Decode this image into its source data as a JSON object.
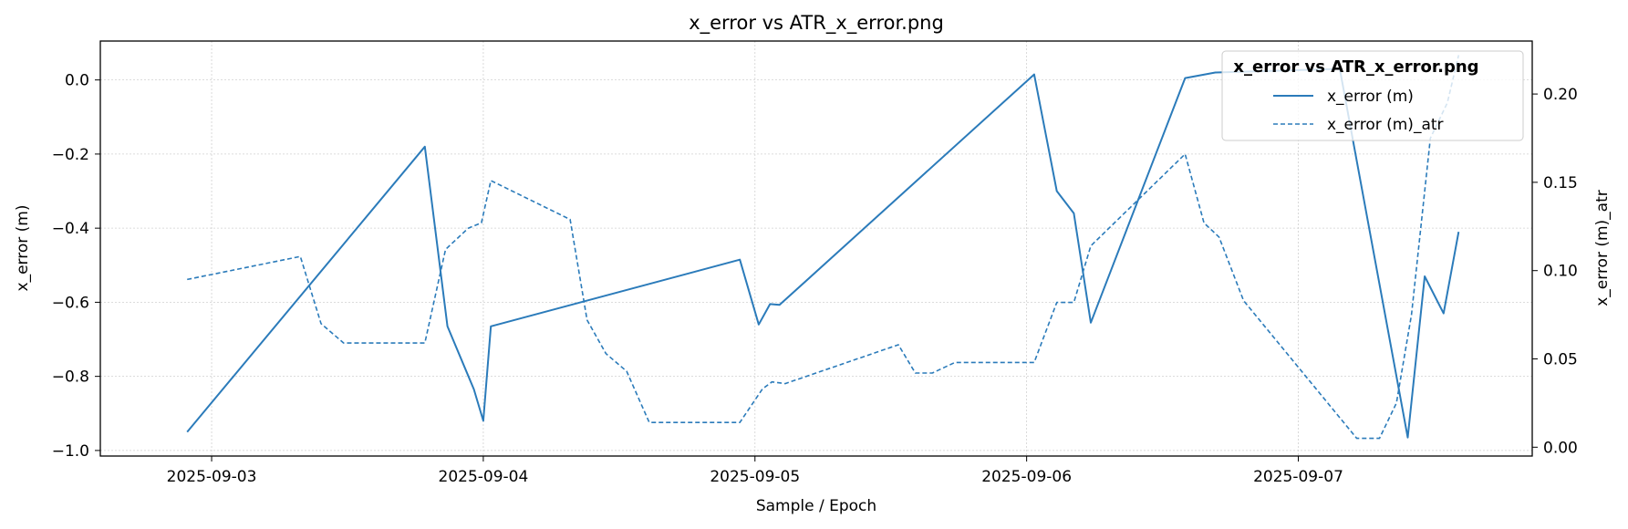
{
  "chart_data": {
    "type": "line",
    "title": "x_error vs ATR_x_error.png",
    "xlabel": "Sample / Epoch",
    "ylabel_left": "x_error (m)",
    "ylabel_right": "x_error (m)_atr",
    "xlim": [
      "2025-09-02T14:10",
      "2025-09-07T20:40"
    ],
    "ylim_left": [
      -1.015,
      0.105
    ],
    "ylim_right": [
      -0.005,
      0.23
    ],
    "x_ticks": [
      "2025-09-03",
      "2025-09-04",
      "2025-09-05",
      "2025-09-06",
      "2025-09-07"
    ],
    "y_ticks_left": [
      "-1.0",
      "-0.8",
      "-0.6",
      "-0.4",
      "-0.2",
      "0.0"
    ],
    "y_ticks_right": [
      "0.00",
      "0.05",
      "0.10",
      "0.15",
      "0.20"
    ],
    "grid": true,
    "legend": {
      "title": "x_error vs ATR_x_error.png",
      "placement": "top-right"
    },
    "series": [
      {
        "name": "x_error (m)",
        "axis": "left",
        "style": "solid",
        "color": "#2b7bba",
        "x": [
          "2025-09-02T21:50",
          "2025-09-03T18:50",
          "2025-09-03T20:50",
          "2025-09-03T23:10",
          "2025-09-04T00:00",
          "2025-09-04T00:40",
          "2025-09-04T22:40",
          "2025-09-05T00:20",
          "2025-09-05T01:20",
          "2025-09-05T02:10",
          "2025-09-06T00:40",
          "2025-09-06T02:40",
          "2025-09-06T04:10",
          "2025-09-06T05:40",
          "2025-09-06T14:00",
          "2025-09-06T16:40",
          "2025-09-07T03:40",
          "2025-09-07T09:40",
          "2025-09-07T11:10",
          "2025-09-07T12:50",
          "2025-09-07T14:10"
        ],
        "y": [
          -0.95,
          -0.18,
          -0.665,
          -0.835,
          -0.92,
          -0.665,
          -0.485,
          -0.66,
          -0.605,
          -0.607,
          0.015,
          -0.3,
          -0.36,
          -0.655,
          0.005,
          0.02,
          0.03,
          -0.965,
          -0.53,
          -0.63,
          -0.41
        ]
      },
      {
        "name": "x_error (m)_atr",
        "axis": "right",
        "style": "dashed",
        "color": "#2b7bba",
        "x": [
          "2025-09-02T21:50",
          "2025-09-03T07:50",
          "2025-09-03T09:40",
          "2025-09-03T11:40",
          "2025-09-03T18:50",
          "2025-09-03T20:40",
          "2025-09-03T22:40",
          "2025-09-03T23:50",
          "2025-09-04T00:40",
          "2025-09-04T07:40",
          "2025-09-04T09:10",
          "2025-09-04T10:50",
          "2025-09-04T12:40",
          "2025-09-04T14:40",
          "2025-09-04T22:40",
          "2025-09-05T00:40",
          "2025-09-05T01:30",
          "2025-09-05T02:40",
          "2025-09-05T12:40",
          "2025-09-05T14:10",
          "2025-09-05T15:40",
          "2025-09-05T17:40",
          "2025-09-06T00:40",
          "2025-09-06T02:40",
          "2025-09-06T04:10",
          "2025-09-06T05:40",
          "2025-09-06T14:00",
          "2025-09-06T15:40",
          "2025-09-06T17:00",
          "2025-09-06T19:10",
          "2025-09-07T05:10",
          "2025-09-07T07:10",
          "2025-09-07T08:40",
          "2025-09-07T10:00",
          "2025-09-07T11:40",
          "2025-09-07T13:10",
          "2025-09-07T14:10"
        ],
        "y": [
          0.095,
          0.108,
          0.07,
          0.059,
          0.059,
          0.112,
          0.124,
          0.127,
          0.151,
          0.129,
          0.072,
          0.053,
          0.043,
          0.014,
          0.014,
          0.033,
          0.037,
          0.036,
          0.058,
          0.042,
          0.042,
          0.048,
          0.048,
          0.082,
          0.082,
          0.114,
          0.166,
          0.127,
          0.119,
          0.083,
          0.005,
          0.005,
          0.025,
          0.075,
          0.175,
          0.195,
          0.222
        ]
      }
    ]
  }
}
